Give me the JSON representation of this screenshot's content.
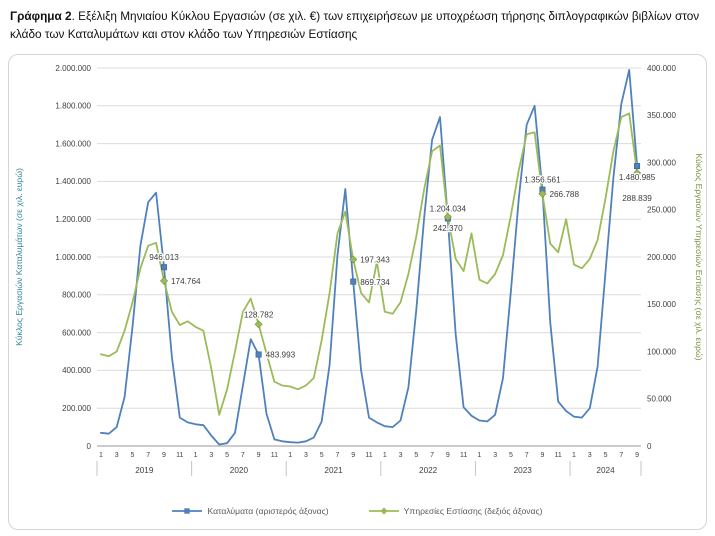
{
  "title": {
    "bold": "Γράφημα 2",
    "rest": ". Εξέλιξη Μηνιαίου Κύκλου Εργασιών (σε χιλ. €) των επιχειρήσεων με υποχρέωση τήρησης διπλογραφικών βιβλίων στον κλάδο των Καταλυμάτων και στον κλάδο των Υπηρεσιών Εστίασης"
  },
  "chart_data": {
    "type": "line",
    "x_unit": "month",
    "groups": [
      {
        "year": "2019",
        "months": 12
      },
      {
        "year": "2020",
        "months": 12
      },
      {
        "year": "2021",
        "months": 12
      },
      {
        "year": "2022",
        "months": 12
      },
      {
        "year": "2023",
        "months": 12
      },
      {
        "year": "2024",
        "months": 9
      }
    ],
    "month_tick_labels": [
      "1",
      "3",
      "5",
      "7",
      "9",
      "11"
    ],
    "left_axis": {
      "title": "Κύκλος Εργασιών Καταλυμάτων (σε χιλ. ευρώ)",
      "min": 0,
      "max": 2000000,
      "step": 200000,
      "color": "#31859c"
    },
    "right_axis": {
      "title": "Κύκλος Εργασιών Υπηρεσιών Εστίασης (σε χιλ. ευρώ)",
      "min": 0,
      "max": 400000,
      "step": 50000,
      "color": "#77933c"
    },
    "gridline_color": "#dcdcdc",
    "axis_line_color": "#9a9a9a",
    "series": [
      {
        "name": "Καταλύματα (αριστερός άξονας)",
        "axis": "left",
        "color": "#4f81bd",
        "marker": "square",
        "values": [
          70000,
          65000,
          100000,
          260000,
          630000,
          1060000,
          1290000,
          1340000,
          946013,
          470000,
          150000,
          125000,
          115000,
          110000,
          55000,
          8000,
          15000,
          70000,
          320000,
          565000,
          483993,
          170000,
          35000,
          25000,
          20000,
          18000,
          25000,
          45000,
          130000,
          430000,
          1010000,
          1360000,
          869734,
          400000,
          150000,
          125000,
          105000,
          100000,
          135000,
          310000,
          720000,
          1210000,
          1620000,
          1740000,
          1204034,
          590000,
          205000,
          160000,
          135000,
          130000,
          165000,
          360000,
          820000,
          1310000,
          1700000,
          1800000,
          1356561,
          650000,
          235000,
          185000,
          155000,
          150000,
          200000,
          420000,
          920000,
          1420000,
          1810000,
          1990000,
          1480985
        ]
      },
      {
        "name": "Υπηρεσίες Εστίασης (δεξιός άξονας)",
        "axis": "right",
        "color": "#9bbb59",
        "marker": "diamond",
        "values": [
          97000,
          95000,
          100000,
          122000,
          152000,
          188000,
          212000,
          215000,
          174764,
          142000,
          128000,
          132000,
          126000,
          122000,
          82000,
          33000,
          60000,
          100000,
          142000,
          156000,
          128782,
          98000,
          68000,
          64000,
          63000,
          60000,
          64000,
          72000,
          112000,
          162000,
          225000,
          248000,
          197343,
          162000,
          152000,
          195000,
          142000,
          140000,
          152000,
          182000,
          222000,
          272000,
          312000,
          318000,
          242370,
          198000,
          185000,
          225000,
          176000,
          172000,
          182000,
          202000,
          244000,
          292000,
          330000,
          332000,
          266788,
          214000,
          205000,
          240000,
          192000,
          188000,
          198000,
          218000,
          262000,
          312000,
          348000,
          352000,
          288839
        ]
      }
    ],
    "annotations": [
      {
        "series": 0,
        "index": 8,
        "text": "946.013",
        "pos": "above"
      },
      {
        "series": 1,
        "index": 8,
        "text": "174.764",
        "pos": "right"
      },
      {
        "series": 1,
        "index": 20,
        "text": "128.782",
        "pos": "above"
      },
      {
        "series": 0,
        "index": 20,
        "text": "483.993",
        "pos": "right"
      },
      {
        "series": 1,
        "index": 32,
        "text": "197.343",
        "pos": "right"
      },
      {
        "series": 0,
        "index": 32,
        "text": "869.734",
        "pos": "right"
      },
      {
        "series": 0,
        "index": 44,
        "text": "1.204.034",
        "pos": "above"
      },
      {
        "series": 1,
        "index": 44,
        "text": "242.370",
        "pos": "below"
      },
      {
        "series": 0,
        "index": 56,
        "text": "1.356.561",
        "pos": "above"
      },
      {
        "series": 1,
        "index": 56,
        "text": "266.788",
        "pos": "right"
      },
      {
        "series": 0,
        "index": 68,
        "text": "1.480.985",
        "pos": "below"
      },
      {
        "series": 1,
        "index": 68,
        "text": "288.839",
        "pos": "below-far"
      }
    ]
  }
}
